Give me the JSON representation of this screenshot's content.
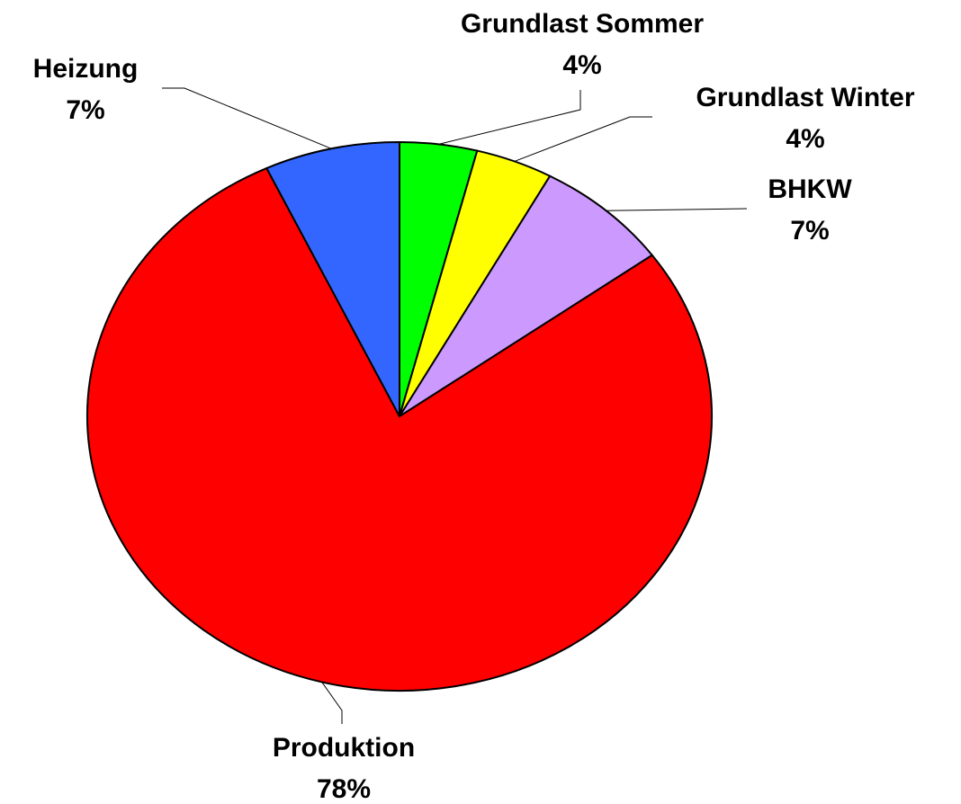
{
  "chart_data": {
    "type": "pie",
    "categories": [
      "Grundlast Sommer",
      "Grundlast Winter",
      "BHKW",
      "Produktion",
      "Heizung"
    ],
    "values": [
      4,
      4,
      7,
      78,
      7
    ],
    "value_labels": [
      "4%",
      "4%",
      "7%",
      "78%",
      "7%"
    ],
    "colors": [
      "#00ff00",
      "#ffff00",
      "#cc99ff",
      "#ff0000",
      "#3366ff"
    ]
  }
}
